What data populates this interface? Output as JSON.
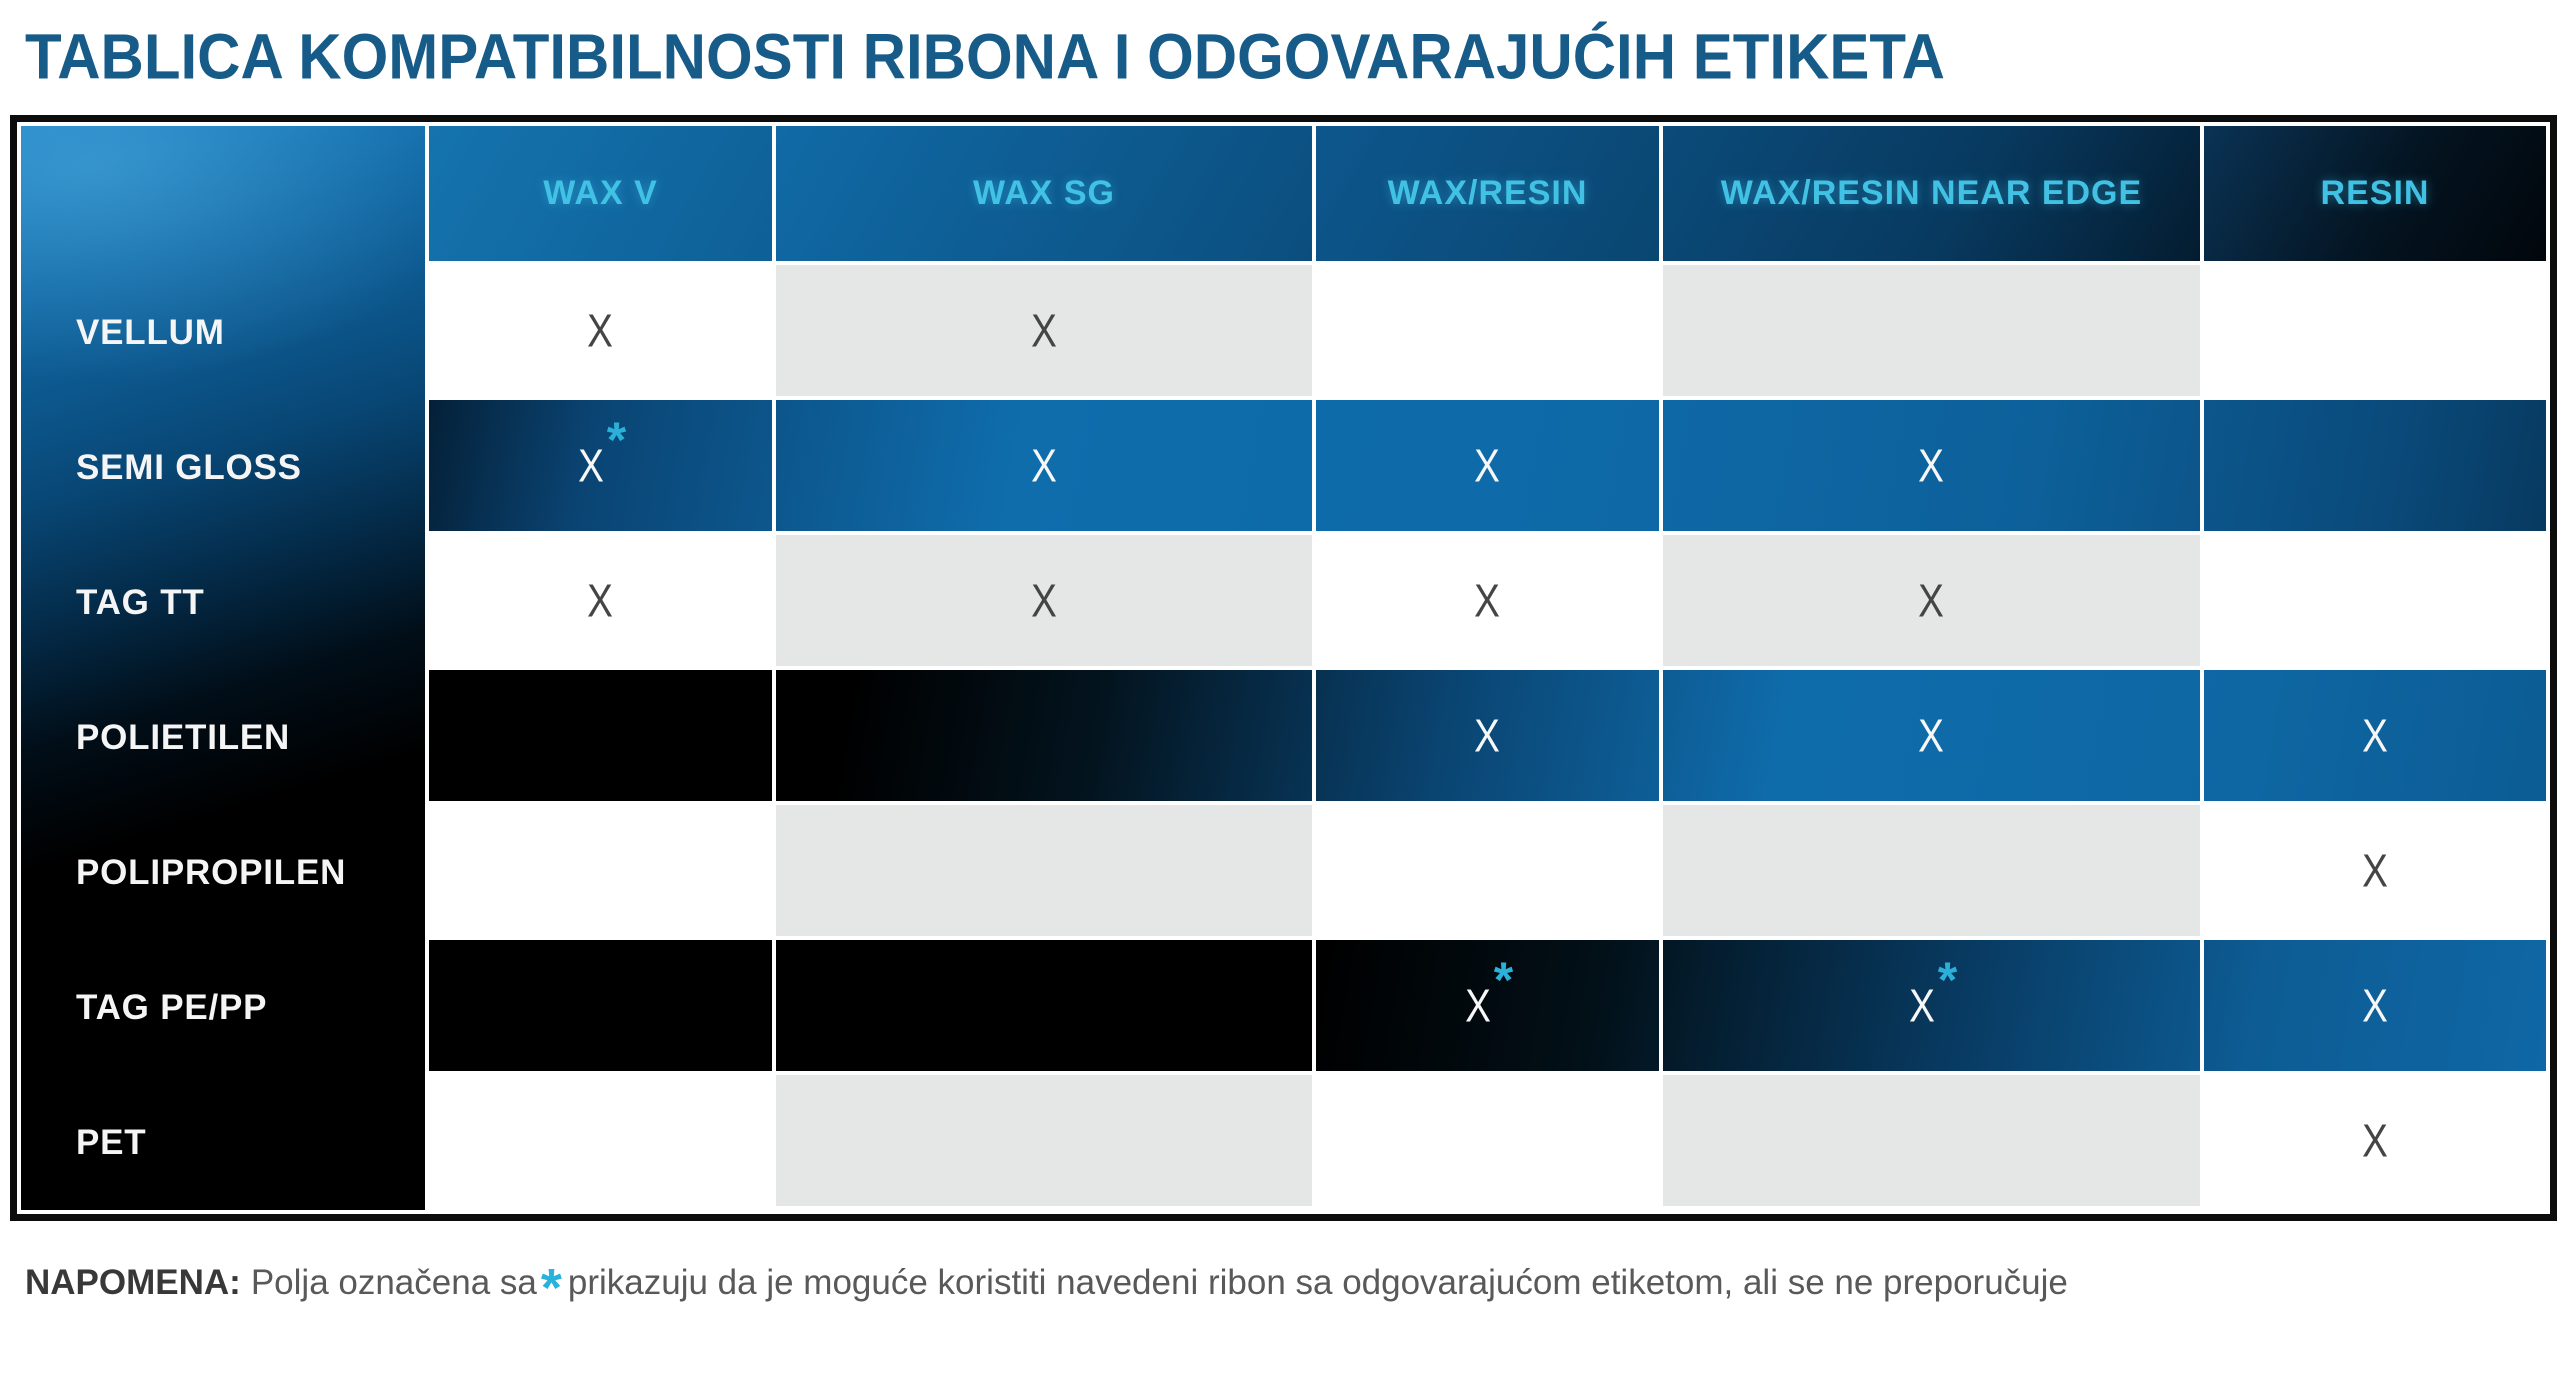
{
  "title": "TABLICA KOMPATIBILNOSTI RIBONA I ODGOVARAJUĆIH ETIKETA",
  "table": {
    "columns": [
      "WAX V",
      "WAX SG",
      "WAX/RESIN",
      "WAX/RESIN NEAR EDGE",
      "RESIN"
    ],
    "rows": [
      {
        "label": "VELLUM",
        "theme": "light",
        "cells": [
          {
            "mark": "X"
          },
          {
            "mark": "X"
          },
          {},
          {},
          {}
        ]
      },
      {
        "label": "SEMI GLOSS",
        "theme": "blue",
        "cells": [
          {
            "mark": "X",
            "star": "*"
          },
          {
            "mark": "X"
          },
          {
            "mark": "X"
          },
          {
            "mark": "X"
          },
          {}
        ]
      },
      {
        "label": "TAG TT",
        "theme": "light",
        "cells": [
          {
            "mark": "X"
          },
          {
            "mark": "X"
          },
          {
            "mark": "X"
          },
          {
            "mark": "X"
          },
          {}
        ]
      },
      {
        "label": "POLIETILEN",
        "theme": "dark",
        "cells": [
          {},
          {},
          {
            "mark": "X"
          },
          {
            "mark": "X"
          },
          {
            "mark": "X"
          }
        ]
      },
      {
        "label": "POLIPROPILEN",
        "theme": "light",
        "cells": [
          {},
          {},
          {},
          {},
          {
            "mark": "X"
          }
        ]
      },
      {
        "label": "TAG PE/PP",
        "theme": "dark2",
        "cells": [
          {},
          {},
          {
            "mark": "X",
            "star": "*"
          },
          {
            "mark": "X",
            "star": "*"
          },
          {
            "mark": "X"
          }
        ]
      },
      {
        "label": "PET",
        "theme": "light",
        "cells": [
          {},
          {},
          {},
          {},
          {
            "mark": "X"
          }
        ]
      }
    ]
  },
  "note": {
    "label": "NAPOMENA:",
    "before_star": "Polja označena sa",
    "star": "*",
    "after_star": "prikazuju da je moguće koristiti navedeni ribon sa odgovarajućom etiketom, ali se ne preporučuje"
  },
  "colors": {
    "title_blue": "#175b88",
    "header_text_cyan": "#41c2e4",
    "accent_cyan": "#2bb1d9",
    "table_blue": "#0e68a6",
    "light_gray_cell": "#e5e6e6",
    "dark_cell": "#000000",
    "mark_on_light": "#454545",
    "mark_on_dark": "#f7f7f7",
    "note_text": "#595959",
    "border_black": "#0c0c0c"
  },
  "chart_data": {
    "type": "table",
    "title": "TABLICA KOMPATIBILNOSTI RIBONA I ODGOVARAJUĆIH ETIKETA",
    "columns": [
      "",
      "WAX V",
      "WAX SG",
      "WAX/RESIN",
      "WAX/RESIN NEAR EDGE",
      "RESIN"
    ],
    "rows": [
      [
        "VELLUM",
        "X",
        "X",
        "",
        "",
        ""
      ],
      [
        "SEMI GLOSS",
        "X*",
        "X",
        "X",
        "X",
        ""
      ],
      [
        "TAG TT",
        "X",
        "X",
        "X",
        "X",
        ""
      ],
      [
        "POLIETILEN",
        "",
        "",
        "X",
        "X",
        "X"
      ],
      [
        "POLIPROPILEN",
        "",
        "",
        "",
        "",
        "X"
      ],
      [
        "TAG PE/PP",
        "",
        "",
        "X*",
        "X*",
        "X"
      ],
      [
        "PET",
        "",
        "",
        "",
        "",
        "X"
      ]
    ],
    "footnote": "NAPOMENA: Polja označena sa * prikazuju da je moguće koristiti navedeni ribon sa odgovarajućom etiketom, ali se ne preporučuje",
    "legend": "X* = usable but not recommended"
  }
}
